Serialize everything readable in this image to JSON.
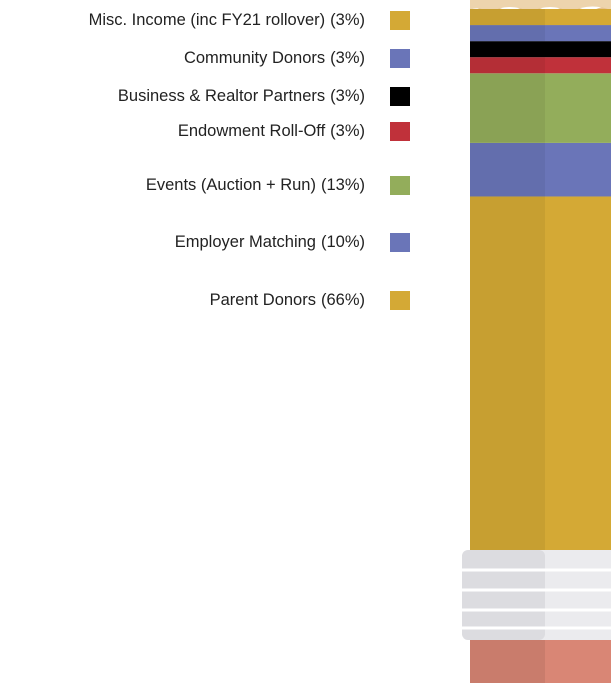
{
  "chart_data": {
    "type": "stacked-bar",
    "series": [
      {
        "name": "Misc. Income (inc FY21 rollover)",
        "color": "#d4a935",
        "values": [
          3
        ],
        "value_labels": [
          "(3%)"
        ]
      },
      {
        "name": "Community Donors",
        "color": "#6a75b8",
        "values": [
          3
        ],
        "value_labels": [
          "(3%)"
        ]
      },
      {
        "name": "Business & Realtor Partners",
        "color": "#000000",
        "values": [
          3
        ],
        "value_labels": [
          "(3%)"
        ]
      },
      {
        "name": "Endowment Roll-Off",
        "color": "#c0313a",
        "values": [
          3
        ],
        "value_labels": [
          "(3%)"
        ]
      },
      {
        "name": "Events (Auction + Run)",
        "color": "#93ad5b",
        "values": [
          13
        ],
        "value_labels": [
          "(13%)"
        ]
      },
      {
        "name": "Employer Matching",
        "color": "#6a75b8",
        "values": [
          10
        ],
        "value_labels": [
          "(10%)"
        ]
      },
      {
        "name": "Parent Donors",
        "color": "#d4a935",
        "values": [
          66
        ],
        "value_labels": [
          "(66%)"
        ]
      }
    ]
  }
}
